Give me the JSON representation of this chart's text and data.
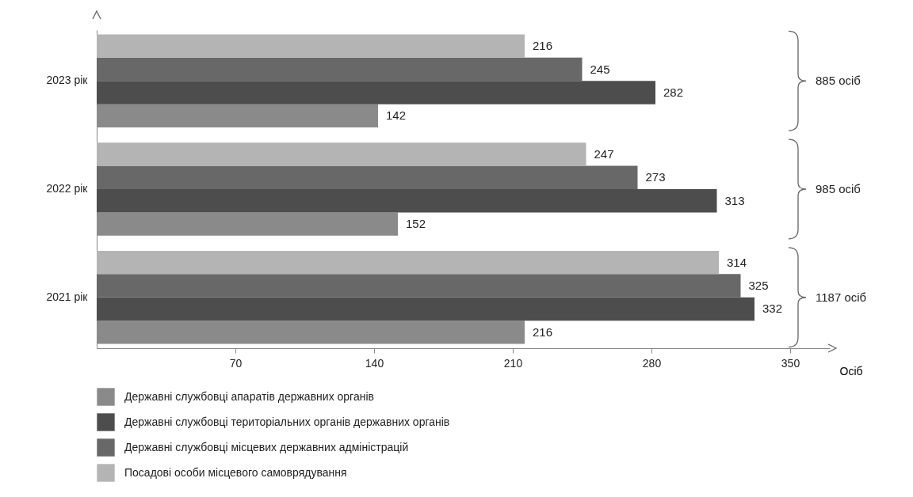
{
  "chart_data": {
    "type": "bar",
    "orientation": "horizontal",
    "categories": [
      "2023 рік",
      "2022 рік",
      "2021 рік"
    ],
    "series": [
      {
        "name": "Державні службовці апаратів державних органів",
        "color": "#8a8a8a",
        "values": [
          142,
          152,
          216
        ]
      },
      {
        "name": "Державні службовці територіальних органів державних органів",
        "color": "#4d4d4d",
        "values": [
          282,
          313,
          332
        ]
      },
      {
        "name": "Державні службовці місцевих державних адміністрацій",
        "color": "#686868",
        "values": [
          245,
          273,
          325
        ]
      },
      {
        "name": "Посадові особи місцевого самоврядування",
        "color": "#b4b4b4",
        "values": [
          216,
          247,
          314
        ]
      }
    ],
    "xlim": [
      0,
      370
    ],
    "xticks": [
      70,
      140,
      210,
      280,
      350
    ],
    "xlabel": "Осіб",
    "data_labels": true,
    "grid": false,
    "legend": "bottom",
    "annotations": [
      "885 осіб",
      "985 осіб",
      "1187 осіб"
    ]
  }
}
